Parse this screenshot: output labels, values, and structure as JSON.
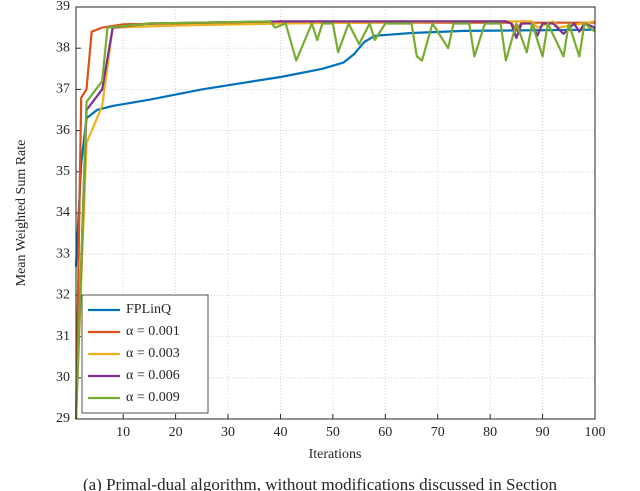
{
  "chart_data": {
    "type": "line",
    "xlabel": "Iterations",
    "ylabel": "Mean Weighted Sum Rate",
    "xlim": [
      1,
      100
    ],
    "ylim": [
      29,
      39
    ],
    "xticks": [
      10,
      20,
      30,
      40,
      50,
      60,
      70,
      80,
      90,
      100
    ],
    "yticks": [
      29,
      30,
      31,
      32,
      33,
      34,
      35,
      36,
      37,
      38,
      39
    ],
    "grid": true,
    "legend": "lower left",
    "series": [
      {
        "name": "FPLinQ",
        "color": "#0072bd",
        "x": [
          1,
          2,
          3,
          5,
          8,
          15,
          25,
          40,
          48,
          52,
          54,
          56,
          58,
          65,
          75,
          100
        ],
        "values": [
          32.7,
          35.2,
          36.3,
          36.5,
          36.6,
          36.75,
          37.0,
          37.3,
          37.5,
          37.65,
          37.85,
          38.15,
          38.3,
          38.37,
          38.42,
          38.45
        ]
      },
      {
        "name": "α = 0.001",
        "color": "#d95319",
        "x": [
          1,
          2,
          3,
          4,
          6,
          10,
          30,
          60,
          84,
          85,
          86,
          100
        ],
        "values": [
          29,
          36.8,
          37.0,
          38.4,
          38.5,
          38.58,
          38.62,
          38.62,
          38.62,
          38.45,
          38.62,
          38.62
        ]
      },
      {
        "name": "α = 0.003",
        "color": "#edb120",
        "x": [
          1,
          3,
          5,
          6,
          8,
          20,
          40,
          80,
          88,
          89,
          92,
          93,
          100
        ],
        "values": [
          29,
          35.7,
          36.3,
          36.6,
          38.5,
          38.55,
          38.6,
          38.65,
          38.65,
          38.5,
          38.65,
          38.5,
          38.65
        ]
      },
      {
        "name": "α = 0.006",
        "color": "#7e2f8e",
        "x": [
          1,
          3,
          6,
          8,
          15,
          40,
          83,
          84,
          85,
          86,
          88,
          89,
          90,
          92,
          94,
          96,
          97,
          98,
          100
        ],
        "values": [
          29,
          36.5,
          37.0,
          38.5,
          38.6,
          38.65,
          38.65,
          38.6,
          38.25,
          38.6,
          38.6,
          38.3,
          38.6,
          38.6,
          38.35,
          38.6,
          38.4,
          38.6,
          38.5
        ]
      },
      {
        "name": "α = 0.009",
        "color": "#77ac30",
        "x": [
          1,
          3,
          6,
          7,
          15,
          38,
          39,
          41,
          43,
          46,
          47,
          48,
          50,
          51,
          53,
          55,
          57,
          58,
          60,
          65,
          66,
          67,
          69,
          72,
          73,
          76,
          77,
          79,
          82,
          83,
          85,
          87,
          88,
          90,
          91,
          94,
          95,
          97,
          98,
          100
        ],
        "values": [
          29,
          36.7,
          37.2,
          38.5,
          38.6,
          38.65,
          38.5,
          38.6,
          37.7,
          38.6,
          38.2,
          38.6,
          38.6,
          37.9,
          38.6,
          38.1,
          38.6,
          38.2,
          38.6,
          38.6,
          37.8,
          37.7,
          38.6,
          38.0,
          38.6,
          38.6,
          37.8,
          38.6,
          38.6,
          37.7,
          38.6,
          37.9,
          38.6,
          37.8,
          38.6,
          37.8,
          38.6,
          37.8,
          38.6,
          38.4
        ]
      }
    ]
  },
  "caption": "(a) Primal-dual algorithm, without modifications discussed in Section"
}
